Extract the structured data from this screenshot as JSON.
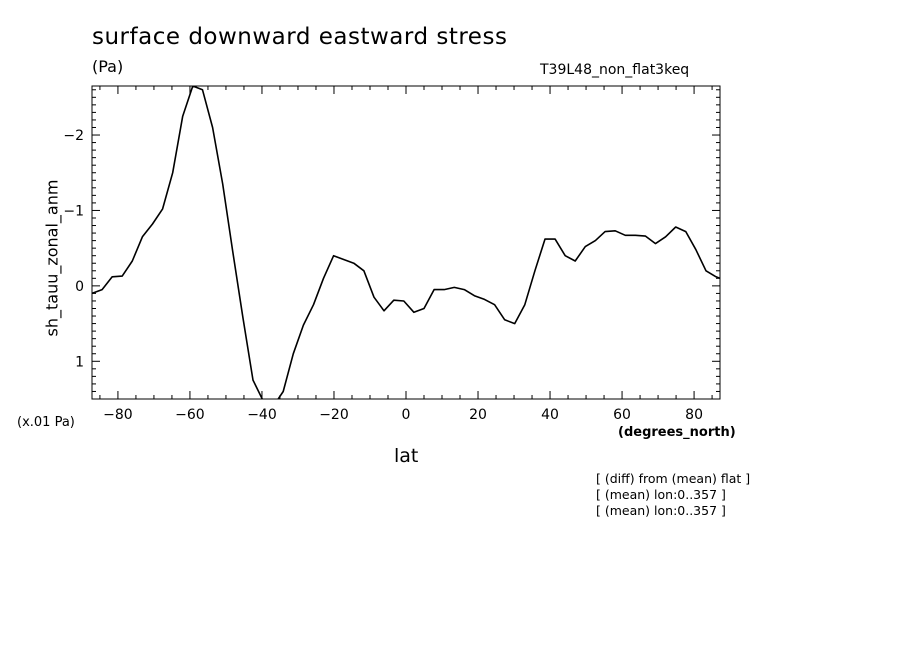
{
  "chart_data": {
    "type": "line",
    "title": "surface downward eastward stress",
    "unit_label": "(Pa)",
    "run_label": "T39L48_non_flat3keq",
    "ylabel": "sh_tauu_zonal_anm",
    "xlabel": "lat",
    "x_unit": "(degrees_north)",
    "y_scale_note": "(x.01 Pa)",
    "notes": [
      "[ (diff) from (mean) flat ]",
      "[ (mean) lon:0..357 ]",
      "[ (mean) lon:0..357 ]"
    ],
    "xlim": [
      -87.2,
      87.2
    ],
    "ylim": [
      1.5,
      -2.65
    ],
    "y_inverted": true,
    "x_ticks": [
      -80,
      -60,
      -40,
      -20,
      0,
      20,
      40,
      60,
      80
    ],
    "x_tick_labels": [
      "−80",
      "−60",
      "−40",
      "−20",
      "0",
      "20",
      "40",
      "60",
      "80"
    ],
    "y_ticks": [
      -2,
      -1,
      0,
      1
    ],
    "y_tick_labels": [
      "−2",
      "−1",
      "0",
      "1"
    ],
    "series": [
      {
        "x": [
          -87.2,
          -84.4,
          -81.6,
          -78.8,
          -76.0,
          -73.2,
          -70.4,
          -67.6,
          -64.8,
          -62.0,
          -59.2,
          -56.5,
          -53.7,
          -50.9,
          -48.1,
          -45.3,
          -42.5,
          -39.7,
          -36.9,
          -34.1,
          -31.3,
          -28.5,
          -25.7,
          -22.9,
          -20.1,
          -17.3,
          -14.5,
          -11.7,
          -8.9,
          -6.1,
          -3.4,
          -0.6,
          2.2,
          5.0,
          7.8,
          10.6,
          13.4,
          16.2,
          19.0,
          21.8,
          24.6,
          27.4,
          30.2,
          33.0,
          35.8,
          38.6,
          41.4,
          44.2,
          47.0,
          49.8,
          52.6,
          55.3,
          58.1,
          60.9,
          63.7,
          66.5,
          69.3,
          72.1,
          74.9,
          77.7,
          80.5,
          83.3,
          86.1,
          87.2
        ],
        "y": [
          0.1,
          0.05,
          -0.12,
          -0.13,
          -0.33,
          -0.65,
          -0.82,
          -1.02,
          -1.5,
          -2.25,
          -2.65,
          -2.6,
          -2.1,
          -1.35,
          -0.45,
          0.42,
          1.25,
          1.52,
          1.6,
          1.4,
          0.9,
          0.52,
          0.25,
          -0.1,
          -0.4,
          -0.35,
          -0.3,
          -0.2,
          0.15,
          0.33,
          0.19,
          0.2,
          0.35,
          0.3,
          0.05,
          0.05,
          0.02,
          0.05,
          0.13,
          0.18,
          0.25,
          0.45,
          0.5,
          0.25,
          -0.2,
          -0.62,
          -0.62,
          -0.4,
          -0.33,
          -0.52,
          -0.6,
          -0.72,
          -0.73,
          -0.67,
          -0.67,
          -0.66,
          -0.56,
          -0.65,
          -0.78,
          -0.72,
          -0.48,
          -0.2,
          -0.12,
          -0.1
        ]
      }
    ]
  }
}
